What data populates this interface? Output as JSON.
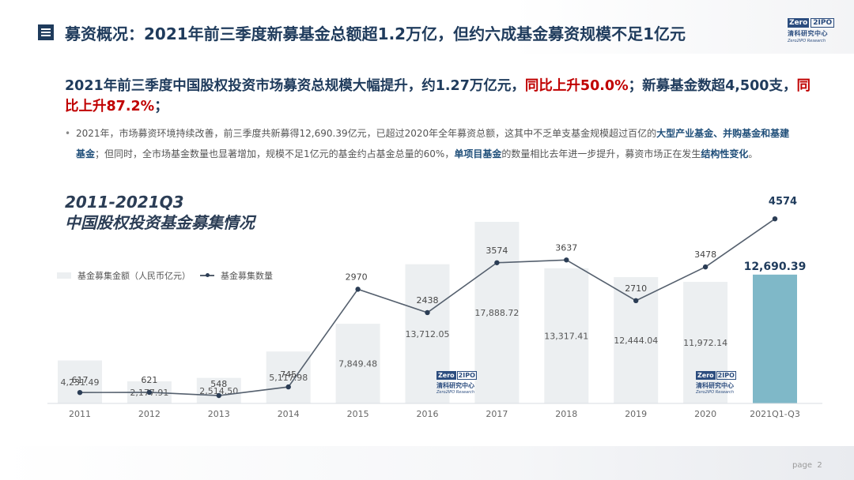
{
  "header": {
    "title": "募资概况：2021年前三季度新募基金总额超1.2万亿，但约六成基金募资规模不足1亿元"
  },
  "logo": {
    "mark_left": "Zero",
    "mark_right": "2IPO",
    "name_cn": "清科研究中心",
    "name_en": "Zero2IPO Research"
  },
  "headline": {
    "part1": "2021年前三季度中国股权投资市场募资总规模大幅提升，约1.27万亿元，",
    "red1": "同比上升50.0%",
    "part2": "；新募基金数超4,500支，",
    "red2": "同比上升87.2%",
    "part3": "；"
  },
  "bullet": {
    "t1": "2021年，市场募资环境持续改善，前三季度共新募得12,690.39亿元，已超过2020年全年募资总额，这其中不乏单支基金规模超过百亿的",
    "h1": "大型产业基金、并购基金和基建基金",
    "t2": "；但同时，全市场基金数量也显著增加，规模不足1亿元的基金约占基金总量的60%，",
    "h2": "单项目基金",
    "t3": "的数量相比去年进一步提升，募资市场正在发生",
    "h3": "结构性变化",
    "t4": "。"
  },
  "chart_title": {
    "line1": "2011-2021Q3",
    "line2": "中国股权投资基金募集情况"
  },
  "chart_data": {
    "type": "bar",
    "categories": [
      "2011",
      "2012",
      "2013",
      "2014",
      "2015",
      "2016",
      "2017",
      "2018",
      "2019",
      "2020",
      "2021Q1-Q3"
    ],
    "series": [
      {
        "name": "基金募集金额（人民币亿元）",
        "type": "bar",
        "values": [
          4231.49,
          2177.91,
          2514.5,
          5117.98,
          7849.48,
          13712.05,
          17888.72,
          13317.41,
          12444.04,
          11972.14,
          12690.39
        ],
        "labels": [
          "4,231.49",
          "2,177.91",
          "2,514.50",
          "5,117.98",
          "7,849.48",
          "13,712.05",
          "17,888.72",
          "13,317.41",
          "12,444.04",
          "11,972.14",
          "12,690.39"
        ]
      },
      {
        "name": "基金募集数量",
        "type": "line",
        "values": [
          617,
          621,
          548,
          745,
          2970,
          2438,
          3574,
          3637,
          2710,
          3478,
          4574
        ]
      }
    ],
    "legend_position": "top-left",
    "grid": false,
    "colors": {
      "bar": "#eceff1",
      "bar_highlight": "#7fb8c8",
      "line": "#55606e",
      "marker": "#2b3d55"
    }
  },
  "page": {
    "label": "page",
    "number": "2"
  }
}
